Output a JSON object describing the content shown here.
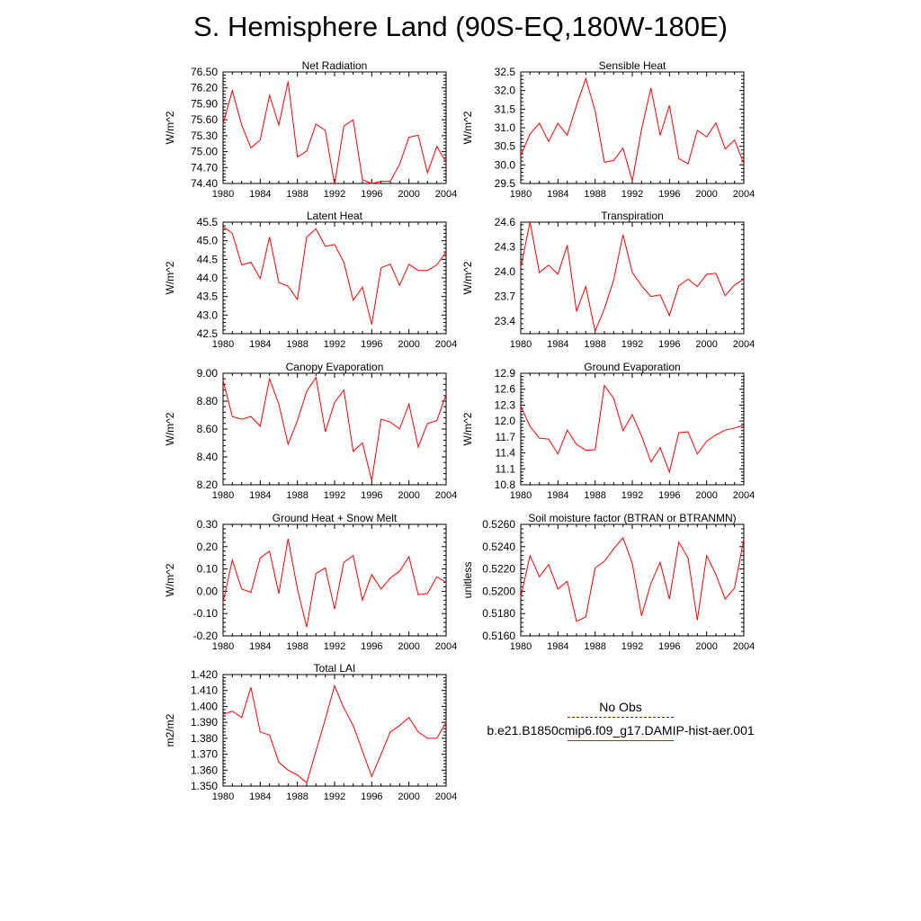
{
  "page": {
    "title": "S. Hemisphere Land (90S-EQ,180W-180E)"
  },
  "legend": [
    {
      "label": "No Obs",
      "color": "#2222cc",
      "style": "dashed"
    },
    {
      "label": "b.e21.B1850cmip6.f09_g17.DAMIP-hist-aer.001",
      "color": "#ff0000",
      "style": "solid"
    }
  ],
  "chart_data": [
    {
      "type": "line",
      "title": "Net Radiation",
      "ylabel": "W/m^2",
      "xlim": [
        1980,
        2004
      ],
      "ylim": [
        74.4,
        76.5
      ],
      "xticks": [
        "1980",
        "1984",
        "1988",
        "1992",
        "1996",
        "2000",
        "2004"
      ],
      "yticks": [
        "74.40",
        "74.70",
        "75.00",
        "75.30",
        "75.60",
        "75.90",
        "76.20",
        "76.50"
      ],
      "x": [
        1980,
        1981,
        1982,
        1983,
        1984,
        1985,
        1986,
        1987,
        1988,
        1989,
        1990,
        1991,
        1992,
        1993,
        1994,
        1995,
        1996,
        1997,
        1998,
        1999,
        2000,
        2001,
        2002,
        2003,
        2004
      ],
      "series": [
        {
          "values": [
            75.52,
            76.15,
            75.5,
            75.07,
            75.22,
            76.06,
            75.5,
            76.32,
            74.9,
            75.01,
            75.52,
            75.4,
            74.38,
            75.48,
            75.6,
            74.47,
            74.4,
            74.44,
            74.44,
            74.76,
            75.27,
            75.31,
            74.6,
            75.1,
            74.8
          ],
          "color": "#ff0000"
        }
      ]
    },
    {
      "type": "line",
      "title": "Sensible Heat",
      "ylabel": "W/m^2",
      "xlim": [
        1980,
        2004
      ],
      "ylim": [
        29.5,
        32.5
      ],
      "xticks": [
        "1980",
        "1984",
        "1988",
        "1992",
        "1996",
        "2000",
        "2004"
      ],
      "yticks": [
        "29.5",
        "30.0",
        "30.5",
        "31.0",
        "31.5",
        "32.0",
        "32.5"
      ],
      "x": [
        1980,
        1981,
        1982,
        1983,
        1984,
        1985,
        1986,
        1987,
        1988,
        1989,
        1990,
        1991,
        1992,
        1993,
        1994,
        1995,
        1996,
        1997,
        1998,
        1999,
        2000,
        2001,
        2002,
        2003,
        2004
      ],
      "series": [
        {
          "values": [
            30.25,
            30.83,
            31.12,
            30.63,
            31.12,
            30.8,
            31.6,
            32.32,
            31.45,
            30.07,
            30.12,
            30.45,
            29.57,
            30.95,
            32.07,
            30.8,
            31.6,
            30.17,
            30.03,
            30.93,
            30.75,
            31.13,
            30.43,
            30.67,
            30.03
          ],
          "color": "#ff0000"
        }
      ]
    },
    {
      "type": "line",
      "title": "Latent Heat",
      "ylabel": "W/m^2",
      "xlim": [
        1980,
        2004
      ],
      "ylim": [
        42.5,
        45.5
      ],
      "xticks": [
        "1980",
        "1984",
        "1988",
        "1992",
        "1996",
        "2000",
        "2004"
      ],
      "yticks": [
        "42.5",
        "43.0",
        "43.5",
        "44.0",
        "44.5",
        "45.0",
        "45.5"
      ],
      "x": [
        1980,
        1981,
        1982,
        1983,
        1984,
        1985,
        1986,
        1987,
        1988,
        1989,
        1990,
        1991,
        1992,
        1993,
        1994,
        1995,
        1996,
        1997,
        1998,
        1999,
        2000,
        2001,
        2002,
        2003,
        2004
      ],
      "series": [
        {
          "values": [
            45.38,
            45.2,
            44.35,
            44.42,
            43.98,
            45.1,
            43.88,
            43.78,
            43.42,
            45.1,
            45.32,
            44.85,
            44.9,
            44.42,
            43.4,
            43.75,
            42.75,
            44.27,
            44.37,
            43.8,
            44.37,
            44.2,
            44.2,
            44.35,
            44.7
          ],
          "color": "#ff0000"
        }
      ]
    },
    {
      "type": "line",
      "title": "Transpiration",
      "ylabel": "W/m^2",
      "xlim": [
        1980,
        2004
      ],
      "ylim": [
        23.25,
        24.6
      ],
      "xticks": [
        "1980",
        "1984",
        "1988",
        "1992",
        "1996",
        "2000",
        "2004"
      ],
      "yticks": [
        "23.4",
        "23.7",
        "24.0",
        "24.3",
        "24.6"
      ],
      "x": [
        1980,
        1981,
        1982,
        1983,
        1984,
        1985,
        1986,
        1987,
        1988,
        1989,
        1990,
        1991,
        1992,
        1993,
        1994,
        1995,
        1996,
        1997,
        1998,
        1999,
        2000,
        2001,
        2002,
        2003,
        2004
      ],
      "series": [
        {
          "values": [
            24.05,
            24.6,
            23.99,
            24.08,
            23.97,
            24.32,
            23.52,
            23.82,
            23.28,
            23.55,
            23.9,
            24.45,
            23.99,
            23.83,
            23.7,
            23.72,
            23.47,
            23.83,
            23.91,
            23.82,
            23.97,
            23.98,
            23.71,
            23.84,
            23.91
          ],
          "color": "#ff0000"
        }
      ]
    },
    {
      "type": "line",
      "title": "Canopy Evaporation",
      "ylabel": "W/m^2",
      "xlim": [
        1980,
        2004
      ],
      "ylim": [
        8.2,
        9.0
      ],
      "xticks": [
        "1980",
        "1984",
        "1988",
        "1992",
        "1996",
        "2000",
        "2004"
      ],
      "yticks": [
        "8.20",
        "8.40",
        "8.60",
        "8.80",
        "9.00"
      ],
      "x": [
        1980,
        1981,
        1982,
        1983,
        1984,
        1985,
        1986,
        1987,
        1988,
        1989,
        1990,
        1991,
        1992,
        1993,
        1994,
        1995,
        1996,
        1997,
        1998,
        1999,
        2000,
        2001,
        2002,
        2003,
        2004
      ],
      "series": [
        {
          "values": [
            8.95,
            8.69,
            8.67,
            8.69,
            8.62,
            8.96,
            8.78,
            8.49,
            8.66,
            8.87,
            8.97,
            8.58,
            8.79,
            8.88,
            8.44,
            8.5,
            8.23,
            8.67,
            8.65,
            8.6,
            8.78,
            8.47,
            8.64,
            8.66,
            8.85
          ],
          "color": "#ff0000"
        }
      ]
    },
    {
      "type": "line",
      "title": "Ground Evaporation",
      "ylabel": "W/m^2",
      "xlim": [
        1980,
        2004
      ],
      "ylim": [
        10.8,
        12.9
      ],
      "xticks": [
        "1980",
        "1984",
        "1988",
        "1992",
        "1996",
        "2000",
        "2004"
      ],
      "yticks": [
        "10.8",
        "11.1",
        "11.4",
        "11.7",
        "12.0",
        "12.3",
        "12.6",
        "12.9"
      ],
      "x": [
        1980,
        1981,
        1982,
        1983,
        1984,
        1985,
        1986,
        1987,
        1988,
        1989,
        1990,
        1991,
        1992,
        1993,
        1994,
        1995,
        1996,
        1997,
        1998,
        1999,
        2000,
        2001,
        2002,
        2003,
        2004
      ],
      "series": [
        {
          "values": [
            12.28,
            11.9,
            11.68,
            11.66,
            11.38,
            11.83,
            11.56,
            11.45,
            11.46,
            12.67,
            12.43,
            11.82,
            12.12,
            11.72,
            11.23,
            11.5,
            11.04,
            11.78,
            11.8,
            11.38,
            11.62,
            11.74,
            11.83,
            11.87,
            11.92
          ],
          "color": "#ff0000"
        }
      ]
    },
    {
      "type": "line",
      "title": "Ground Heat + Snow Melt",
      "ylabel": "W/m^2",
      "xlim": [
        1980,
        2004
      ],
      "ylim": [
        -0.2,
        0.3
      ],
      "xticks": [
        "1980",
        "1984",
        "1988",
        "1992",
        "1996",
        "2000",
        "2004"
      ],
      "yticks": [
        "-0.20",
        "-0.10",
        "0.00",
        "0.10",
        "0.20",
        "0.30"
      ],
      "x": [
        1980,
        1981,
        1982,
        1983,
        1984,
        1985,
        1986,
        1987,
        1988,
        1989,
        1990,
        1991,
        1992,
        1993,
        1994,
        1995,
        1996,
        1997,
        1998,
        1999,
        2000,
        2001,
        2002,
        2003,
        2004
      ],
      "series": [
        {
          "values": [
            -0.05,
            0.14,
            0.01,
            -0.005,
            0.15,
            0.18,
            -0.01,
            0.235,
            0.01,
            -0.16,
            0.08,
            0.105,
            -0.08,
            0.13,
            0.16,
            -0.04,
            0.075,
            0.01,
            0.06,
            0.09,
            0.155,
            -0.015,
            -0.01,
            0.065,
            0.04
          ],
          "color": "#ff0000"
        }
      ]
    },
    {
      "type": "line",
      "title": "Soil moisture factor (BTRAN or BTRANMN)",
      "ylabel": "unitless",
      "xlim": [
        1980,
        2004
      ],
      "ylim": [
        0.516,
        0.526
      ],
      "xticks": [
        "1980",
        "1984",
        "1988",
        "1992",
        "1996",
        "2000",
        "2004"
      ],
      "yticks": [
        "0.5160",
        "0.5180",
        "0.5200",
        "0.5220",
        "0.5240",
        "0.5260"
      ],
      "x": [
        1980,
        1981,
        1982,
        1983,
        1984,
        1985,
        1986,
        1987,
        1988,
        1989,
        1990,
        1991,
        1992,
        1993,
        1994,
        1995,
        1996,
        1997,
        1998,
        1999,
        2000,
        2001,
        2002,
        2003,
        2004
      ],
      "series": [
        {
          "values": [
            0.5195,
            0.5232,
            0.5213,
            0.5224,
            0.5202,
            0.5209,
            0.5173,
            0.5177,
            0.5221,
            0.5227,
            0.5238,
            0.5248,
            0.5225,
            0.5178,
            0.5207,
            0.5226,
            0.5193,
            0.5244,
            0.523,
            0.5174,
            0.5232,
            0.5215,
            0.5193,
            0.5203,
            0.5247
          ],
          "color": "#ff0000"
        }
      ]
    },
    {
      "type": "line",
      "title": "Total LAI",
      "ylabel": "m2/m2",
      "xlim": [
        1980,
        2004
      ],
      "ylim": [
        1.35,
        1.42
      ],
      "xticks": [
        "1980",
        "1984",
        "1988",
        "1992",
        "1996",
        "2000",
        "2004"
      ],
      "yticks": [
        "1.350",
        "1.360",
        "1.370",
        "1.380",
        "1.390",
        "1.400",
        "1.410",
        "1.420"
      ],
      "x": [
        1980,
        1981,
        1982,
        1983,
        1984,
        1985,
        1986,
        1987,
        1988,
        1989,
        1990,
        1991,
        1992,
        1993,
        1994,
        1995,
        1996,
        1997,
        1998,
        1999,
        2000,
        2001,
        2002,
        2003,
        2004
      ],
      "series": [
        {
          "values": [
            1.395,
            1.397,
            1.393,
            1.412,
            1.384,
            1.382,
            1.365,
            1.36,
            1.357,
            1.352,
            1.372,
            1.392,
            1.413,
            1.399,
            1.388,
            1.372,
            1.356,
            1.37,
            1.384,
            1.388,
            1.393,
            1.384,
            1.38,
            1.38,
            1.39
          ],
          "color": "#ff0000"
        }
      ]
    }
  ]
}
